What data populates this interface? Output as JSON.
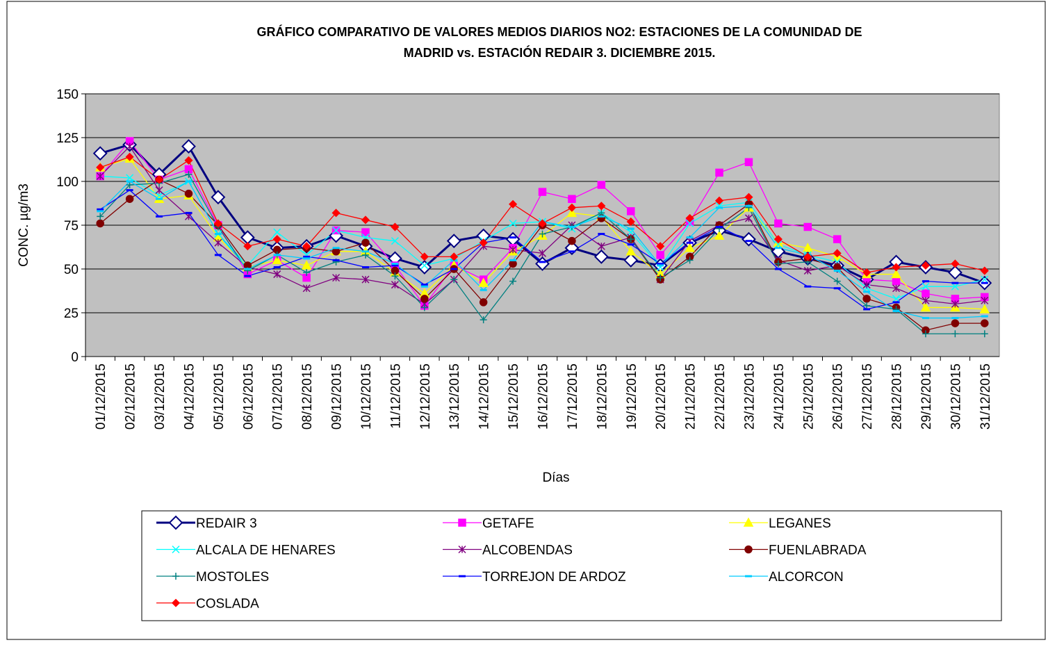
{
  "chart_data": {
    "type": "line",
    "title": [
      "GRÁFICO COMPARATIVO DE VALORES MEDIOS DIARIOS NO2: ESTACIONES DE LA COMUNIDAD DE",
      "MADRID vs. ESTACIÓN REDAIR 3. DICIEMBRE 2015."
    ],
    "y_label": "CONC.   µg/m3",
    "x_label": "Días",
    "categories": [
      "01/12/2015",
      "02/12/2015",
      "03/12/2015",
      "04/12/2015",
      "05/12/2015",
      "06/12/2015",
      "07/12/2015",
      "08/12/2015",
      "09/12/2015",
      "10/12/2015",
      "11/12/2015",
      "12/12/2015",
      "13/12/2015",
      "14/12/2015",
      "15/12/2015",
      "16/12/2015",
      "17/12/2015",
      "18/12/2015",
      "19/12/2015",
      "20/12/2015",
      "21/12/2015",
      "22/12/2015",
      "23/12/2015",
      "24/12/2015",
      "25/12/2015",
      "26/12/2015",
      "27/12/2015",
      "28/12/2015",
      "29/12/2015",
      "30/12/2015",
      "31/12/2015"
    ],
    "ylim": [
      0,
      150
    ],
    "yticks": [
      0,
      25,
      50,
      75,
      100,
      125,
      150
    ],
    "grid": true,
    "legend": "bottom",
    "series": [
      {
        "name": "REDAIR 3",
        "color": "#000080",
        "marker": "diamond",
        "values": [
          116,
          121,
          104,
          120,
          91,
          68,
          62,
          63,
          69,
          63,
          56,
          51,
          66,
          69,
          67,
          53,
          62,
          57,
          55,
          52,
          65,
          72,
          67,
          60,
          56,
          52,
          44,
          54,
          51,
          48,
          42
        ]
      },
      {
        "name": "GETAFE",
        "color": "#ff00ff",
        "marker": "square",
        "values": [
          103,
          123,
          101,
          107,
          75,
          47,
          55,
          45,
          72,
          71,
          52,
          29,
          52,
          44,
          62,
          94,
          90,
          98,
          83,
          58,
          77,
          105,
          111,
          76,
          74,
          67,
          44,
          43,
          36,
          33,
          34
        ]
      },
      {
        "name": "LEGANES",
        "color": "#ffff00",
        "marker": "triangle",
        "values": [
          108,
          113,
          90,
          92,
          68,
          51,
          55,
          52,
          60,
          60,
          48,
          36,
          52,
          42,
          60,
          69,
          82,
          80,
          60,
          47,
          62,
          69,
          85,
          65,
          62,
          57,
          47,
          47,
          28,
          28,
          27
        ]
      },
      {
        "name": "ALCALA DE HENARES",
        "color": "#00ffff",
        "marker": "x",
        "values": [
          103,
          102,
          92,
          100,
          70,
          52,
          71,
          58,
          72,
          68,
          66,
          52,
          56,
          66,
          76,
          77,
          73,
          82,
          71,
          51,
          76,
          86,
          88,
          64,
          58,
          54,
          39,
          33,
          40,
          40,
          44
        ]
      },
      {
        "name": "ALCOBENDAS",
        "color": "#800080",
        "marker": "star",
        "values": [
          103,
          120,
          95,
          80,
          65,
          51,
          47,
          39,
          45,
          44,
          41,
          30,
          44,
          63,
          61,
          59,
          75,
          63,
          68,
          44,
          66,
          75,
          79,
          55,
          49,
          52,
          41,
          39,
          32,
          30,
          32
        ]
      },
      {
        "name": "FUENLABRADA",
        "color": "#800000",
        "marker": "circle",
        "values": [
          76,
          90,
          101,
          93,
          75,
          52,
          61,
          62,
          60,
          65,
          49,
          33,
          50,
          31,
          53,
          75,
          66,
          79,
          67,
          44,
          57,
          75,
          87,
          54,
          56,
          51,
          33,
          28,
          15,
          19,
          19
        ]
      },
      {
        "name": "MOSTOLES",
        "color": "#008080",
        "marker": "plus",
        "values": [
          80,
          98,
          99,
          104,
          74,
          49,
          58,
          48,
          54,
          58,
          46,
          28,
          44,
          21,
          43,
          70,
          74,
          82,
          67,
          45,
          55,
          73,
          85,
          53,
          54,
          43,
          29,
          27,
          13,
          13,
          13
        ]
      },
      {
        "name": "TORREJON DE ARDOZ",
        "color": "#0000ff",
        "marker": "dash",
        "values": [
          84,
          95,
          80,
          82,
          58,
          46,
          51,
          57,
          55,
          51,
          52,
          41,
          50,
          65,
          68,
          54,
          60,
          70,
          64,
          53,
          65,
          74,
          66,
          50,
          40,
          39,
          27,
          31,
          43,
          42,
          42
        ]
      },
      {
        "name": "ALCORCON",
        "color": "#00ccff",
        "marker": "dash",
        "values": [
          83,
          100,
          90,
          100,
          70,
          50,
          58,
          56,
          62,
          60,
          53,
          40,
          55,
          38,
          55,
          77,
          74,
          80,
          73,
          52,
          68,
          85,
          86,
          62,
          58,
          49,
          37,
          26,
          22,
          22,
          23
        ]
      },
      {
        "name": "COSLADA",
        "color": "#ff0000",
        "marker": "diamond",
        "values": [
          108,
          114,
          101,
          112,
          76,
          63,
          67,
          63,
          82,
          78,
          74,
          57,
          57,
          65,
          87,
          76,
          85,
          86,
          77,
          63,
          79,
          89,
          91,
          67,
          57,
          59,
          48,
          51,
          52,
          53,
          49
        ]
      }
    ]
  }
}
